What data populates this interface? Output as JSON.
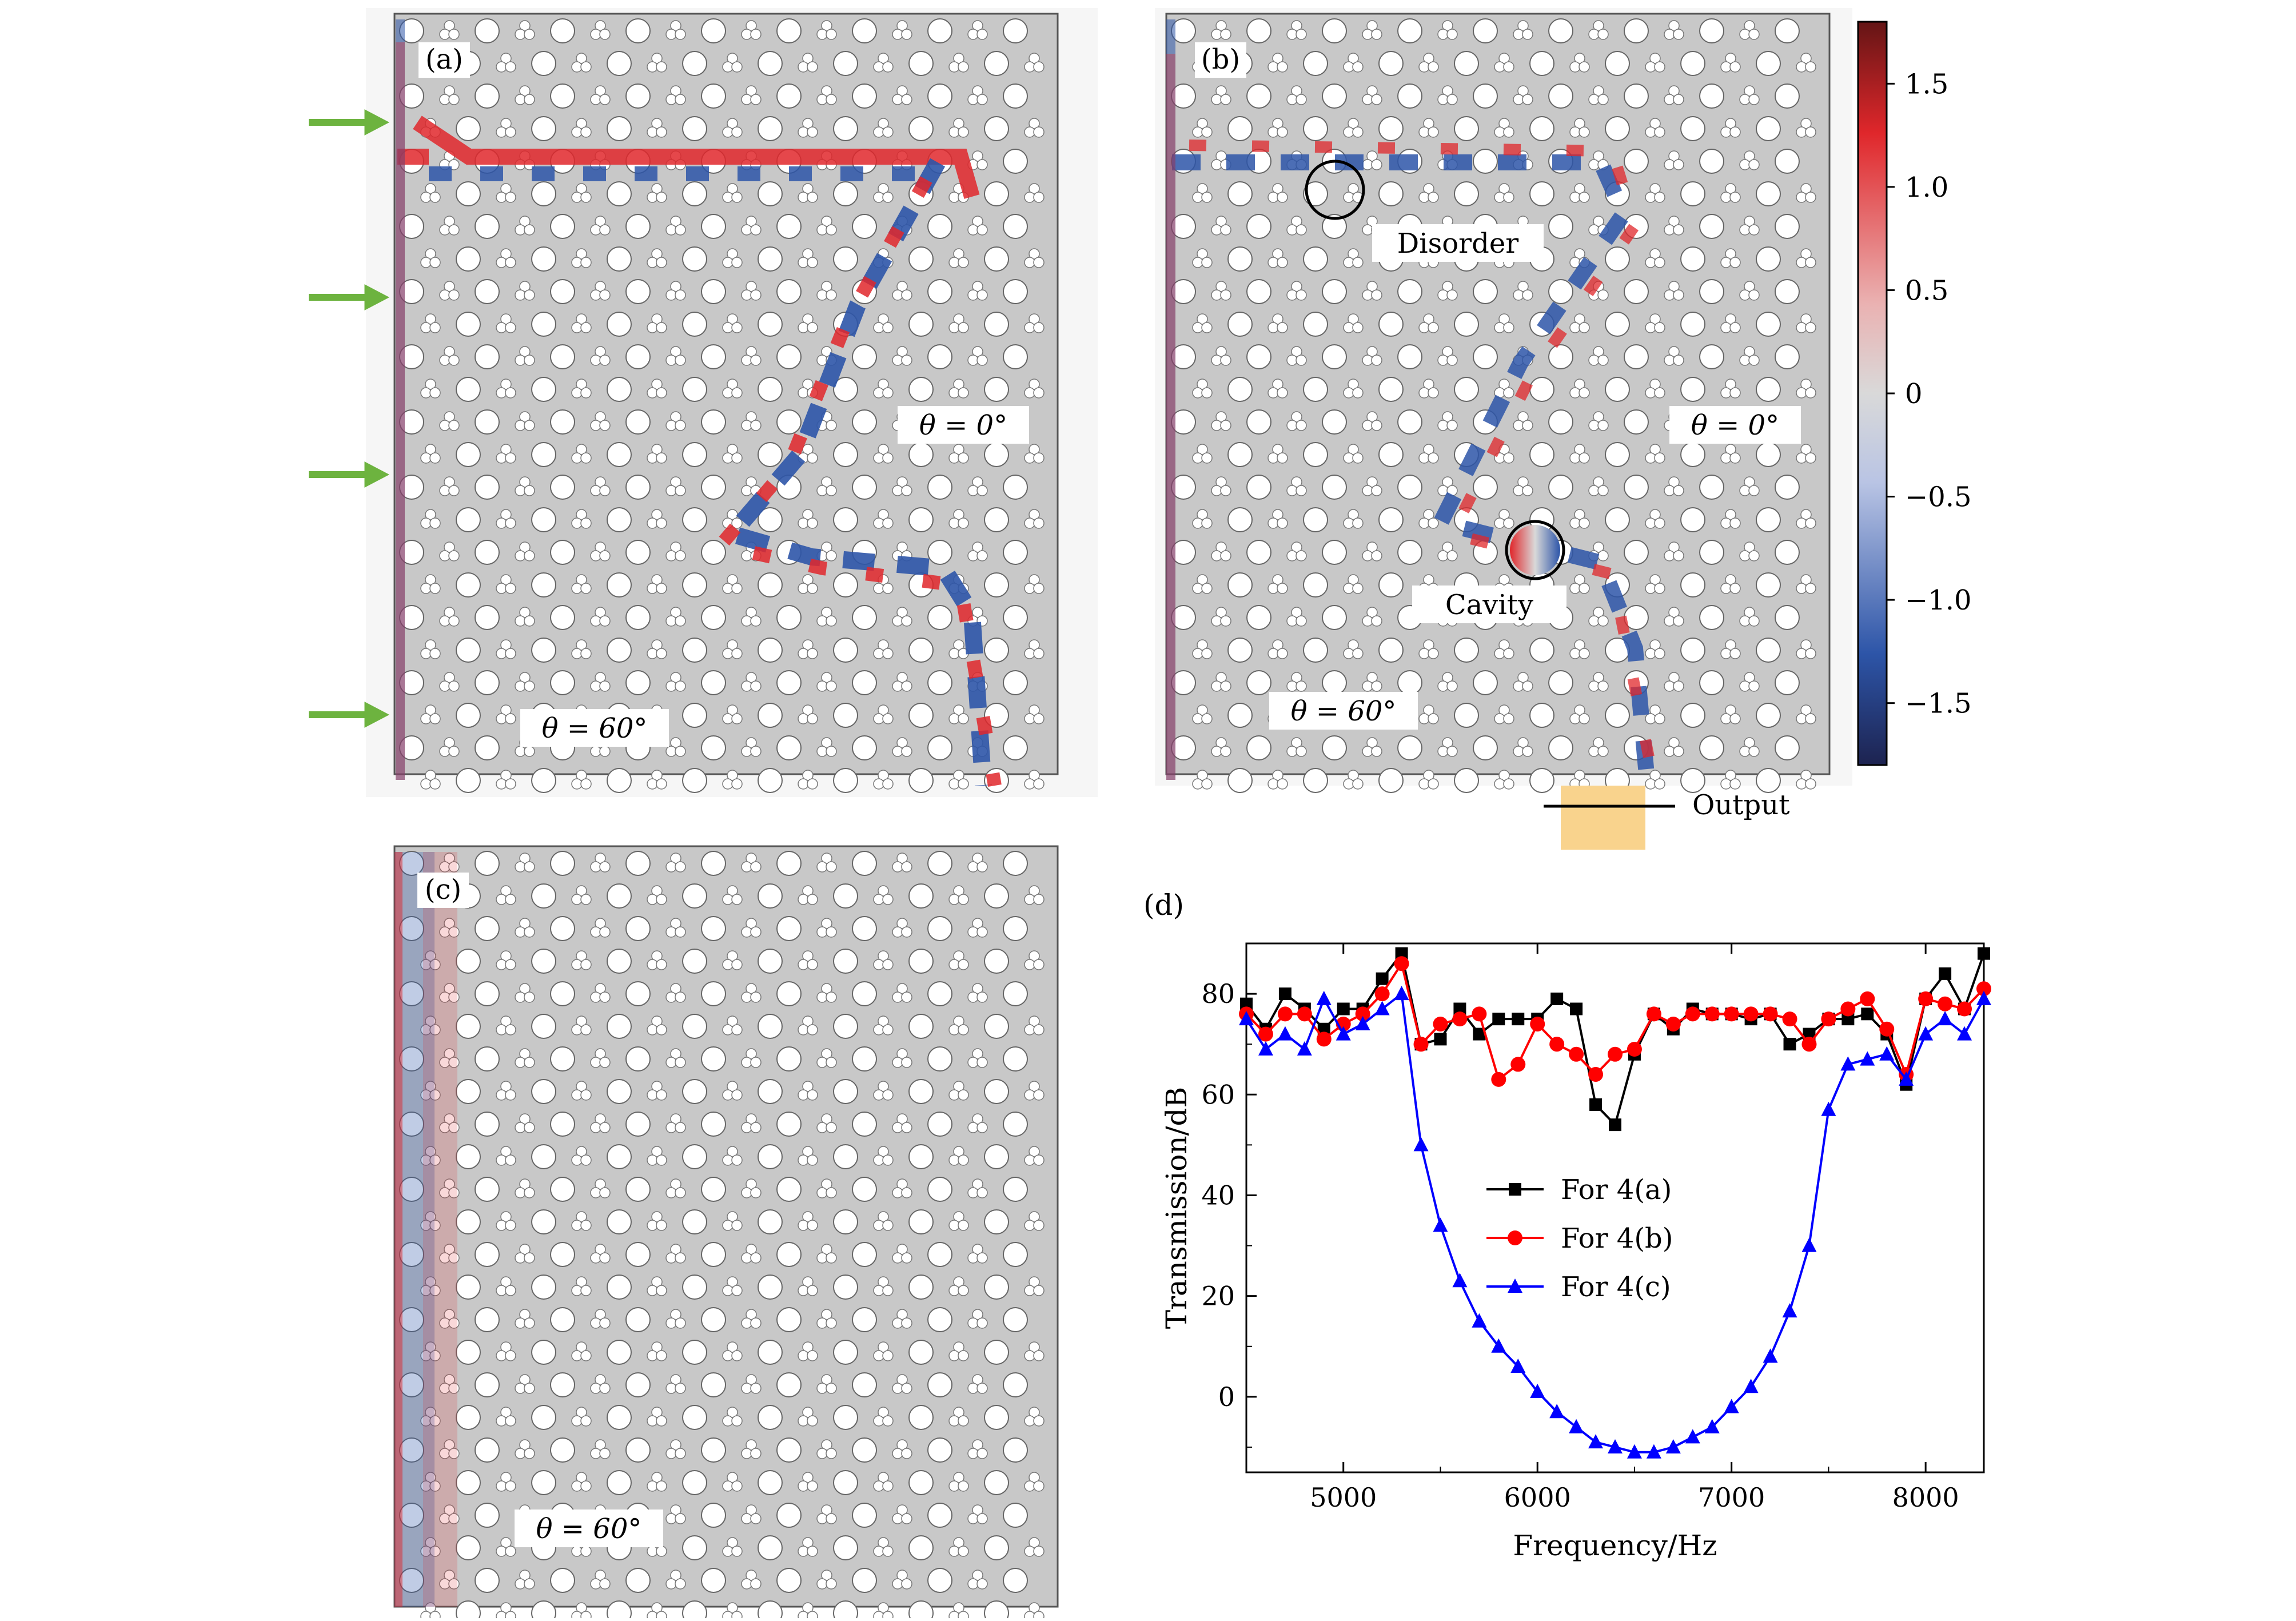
{
  "panels": {
    "a": {
      "label": "(a)",
      "angle_right": "θ = 0°",
      "angle_left": "θ = 60°"
    },
    "b": {
      "label": "(b)",
      "angle_right": "θ = 0°",
      "angle_left": "θ = 60°",
      "disorder": "Disorder",
      "cavity": "Cavity",
      "output": "Output"
    },
    "c": {
      "label": "(c)",
      "angle_left": "θ = 60°"
    },
    "d": {
      "label": "(d)"
    }
  },
  "colorbar": {
    "ticks": [
      "1.5",
      "1.0",
      "0.5",
      "0",
      "−0.5",
      "−1.0",
      "−1.5"
    ],
    "tick_values": [
      1.5,
      1.0,
      0.5,
      0,
      -0.5,
      -1.0,
      -1.5
    ],
    "range": [
      -1.8,
      1.8
    ],
    "colors": [
      "#1d2350",
      "#2d55a8",
      "#b9c4e4",
      "#d9d9d9",
      "#eab2b2",
      "#e0272b",
      "#641515"
    ]
  },
  "chart_data": {
    "type": "line",
    "title": "",
    "xlabel": "Frequency/Hz",
    "ylabel": "Transmission/dB",
    "xlim": [
      4500,
      8300
    ],
    "ylim": [
      -15,
      90
    ],
    "xticks": [
      5000,
      6000,
      7000,
      8000
    ],
    "yticks": [
      0,
      20,
      40,
      60,
      80
    ],
    "legend_position": "center",
    "series": [
      {
        "name": "For 4(a)",
        "color": "#000000",
        "marker": "square",
        "x": [
          4500,
          4600,
          4700,
          4800,
          4900,
          5000,
          5100,
          5200,
          5300,
          5400,
          5500,
          5600,
          5700,
          5800,
          5900,
          6000,
          6100,
          6200,
          6300,
          6400,
          6500,
          6600,
          6700,
          6800,
          6900,
          7000,
          7100,
          7200,
          7300,
          7400,
          7500,
          7600,
          7700,
          7800,
          7900,
          8000,
          8100,
          8200,
          8300
        ],
        "y": [
          78,
          73,
          80,
          77,
          73,
          77,
          77,
          83,
          88,
          70,
          71,
          77,
          72,
          75,
          75,
          75,
          79,
          77,
          58,
          54,
          68,
          76,
          73,
          77,
          76,
          76,
          75,
          76,
          70,
          72,
          75,
          75,
          76,
          72,
          62,
          79,
          84,
          77,
          88
        ]
      },
      {
        "name": "For 4(b)",
        "color": "#ff0000",
        "marker": "circle",
        "x": [
          4500,
          4600,
          4700,
          4800,
          4900,
          5000,
          5100,
          5200,
          5300,
          5400,
          5500,
          5600,
          5700,
          5800,
          5900,
          6000,
          6100,
          6200,
          6300,
          6400,
          6500,
          6600,
          6700,
          6800,
          6900,
          7000,
          7100,
          7200,
          7300,
          7400,
          7500,
          7600,
          7700,
          7800,
          7900,
          8000,
          8100,
          8200,
          8300
        ],
        "y": [
          76,
          72,
          76,
          76,
          71,
          74,
          76,
          80,
          86,
          70,
          74,
          75,
          76,
          63,
          66,
          74,
          70,
          68,
          64,
          68,
          69,
          76,
          74,
          76,
          76,
          76,
          76,
          76,
          75,
          70,
          75,
          77,
          79,
          73,
          64,
          79,
          78,
          77,
          81
        ]
      },
      {
        "name": "For 4(c)",
        "color": "#0000ff",
        "marker": "triangle",
        "x": [
          4500,
          4600,
          4700,
          4800,
          4900,
          5000,
          5100,
          5200,
          5300,
          5400,
          5500,
          5600,
          5700,
          5800,
          5900,
          6000,
          6100,
          6200,
          6300,
          6400,
          6500,
          6600,
          6700,
          6800,
          6900,
          7000,
          7100,
          7200,
          7300,
          7400,
          7500,
          7600,
          7700,
          7800,
          7900,
          8000,
          8100,
          8200,
          8300
        ],
        "y": [
          75,
          69,
          72,
          69,
          79,
          72,
          74,
          77,
          80,
          50,
          34,
          23,
          15,
          10,
          6,
          1,
          -3,
          -6,
          -9,
          -10,
          -11,
          -11,
          -10,
          -8,
          -6,
          -2,
          2,
          8,
          17,
          30,
          57,
          66,
          67,
          68,
          63,
          72,
          75,
          72,
          79
        ]
      }
    ]
  }
}
